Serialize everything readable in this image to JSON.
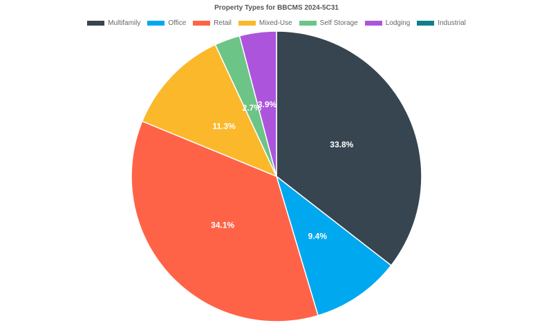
{
  "chart_data": {
    "type": "pie",
    "title": "Property Types for BBCMS 2024-5C31",
    "legend_position": "top",
    "slices": [
      {
        "name": "Multifamily",
        "value": 33.8,
        "label": "33.8%",
        "color": "#36454f"
      },
      {
        "name": "Office",
        "value": 9.4,
        "label": "9.4%",
        "color": "#00a8f0"
      },
      {
        "name": "Retail",
        "value": 34.1,
        "label": "34.1%",
        "color": "#ff6347"
      },
      {
        "name": "Mixed-Use",
        "value": 11.3,
        "label": "11.3%",
        "color": "#fbb82b"
      },
      {
        "name": "Self Storage",
        "value": 2.7,
        "label": "2.7%",
        "color": "#6cc487"
      },
      {
        "name": "Lodging",
        "value": 3.9,
        "label": "3.9%",
        "color": "#ac55dc"
      },
      {
        "name": "Industrial",
        "value": 0,
        "label": "",
        "color": "#0f7f8c"
      }
    ]
  }
}
